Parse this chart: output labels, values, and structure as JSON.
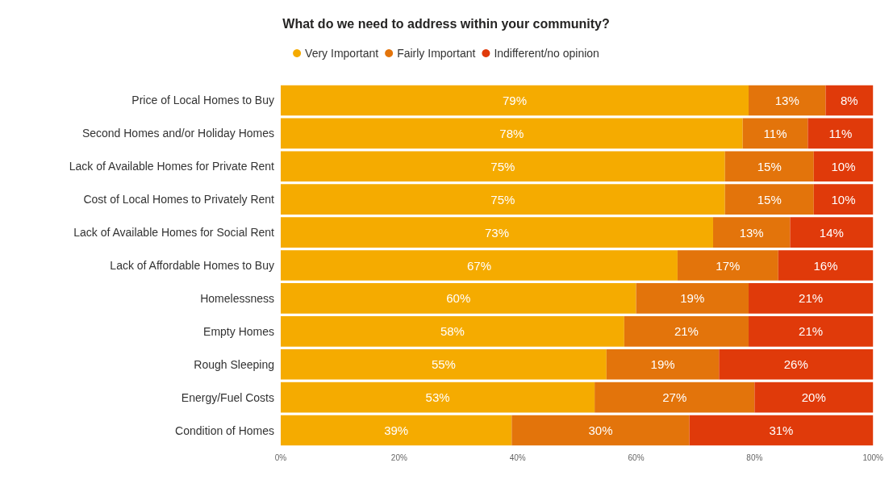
{
  "chart_data": {
    "type": "bar",
    "orientation": "horizontal",
    "stacked": true,
    "title": "What do we need to address within your community?",
    "categories": [
      "Price of Local Homes to Buy",
      "Second Homes and/or Holiday Homes",
      "Lack of Available Homes for Private Rent",
      "Cost of Local Homes to Privately Rent",
      "Lack of Available Homes for Social Rent",
      "Lack of Affordable Homes to Buy",
      "Homelessness",
      "Empty Homes",
      "Rough Sleeping",
      "Energy/Fuel Costs",
      "Condition of Homes"
    ],
    "series": [
      {
        "name": "Very Important",
        "color": "#f5ab00",
        "values": [
          79,
          78,
          75,
          75,
          73,
          67,
          60,
          58,
          55,
          53,
          39
        ],
        "value_labels": [
          "79%",
          "78%",
          "75%",
          "75%",
          "73%",
          "67%",
          "60%",
          "58%",
          "55%",
          "53%",
          "39%"
        ]
      },
      {
        "name": "Fairly Important",
        "color": "#e3740b",
        "values": [
          13,
          11,
          15,
          15,
          13,
          17,
          19,
          21,
          19,
          27,
          30
        ],
        "value_labels": [
          "13%",
          "11%",
          "15%",
          "15%",
          "13%",
          "17%",
          "19%",
          "21%",
          "19%",
          "27%",
          "30%"
        ]
      },
      {
        "name": "Indifferent/no opinion",
        "color": "#e03a0a",
        "values": [
          8,
          11,
          10,
          10,
          14,
          16,
          21,
          21,
          26,
          20,
          31
        ],
        "value_labels": [
          "8%",
          "11%",
          "10%",
          "10%",
          "14%",
          "16%",
          "21%",
          "21%",
          "26%",
          "20%",
          "31%"
        ]
      }
    ],
    "xlim": [
      0,
      100
    ],
    "xticks": [
      {
        "value": 0,
        "label": "0%"
      },
      {
        "value": 20,
        "label": "20%"
      },
      {
        "value": 40,
        "label": "40%"
      },
      {
        "value": 60,
        "label": "60%"
      },
      {
        "value": 80,
        "label": "80%"
      },
      {
        "value": 100,
        "label": "100%"
      }
    ],
    "grid": false,
    "legend": "top"
  }
}
